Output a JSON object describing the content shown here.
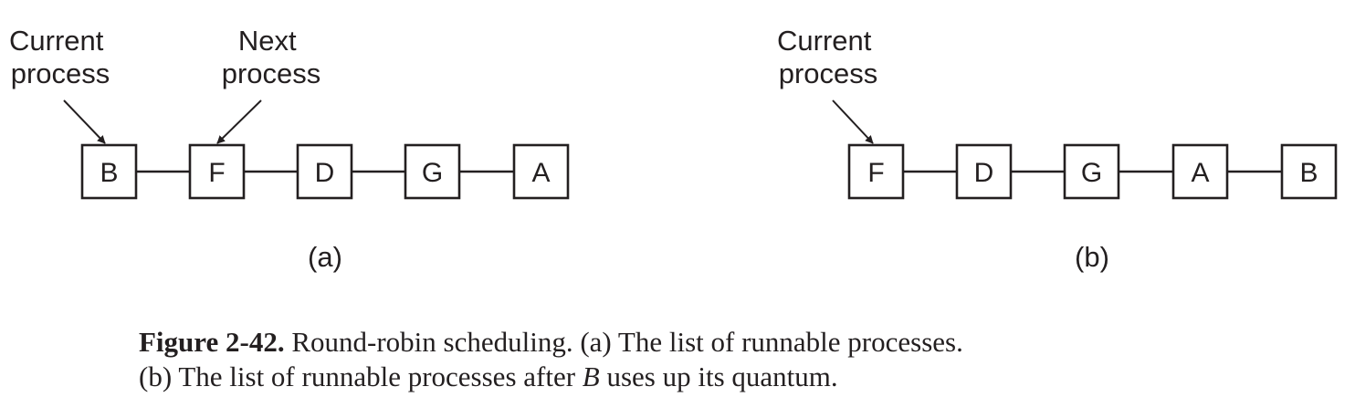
{
  "diagram_a": {
    "current_label": [
      "Current",
      "process"
    ],
    "next_label": [
      "Next",
      "process"
    ],
    "boxes": [
      "B",
      "F",
      "D",
      "G",
      "A"
    ],
    "sublabel": "(a)"
  },
  "diagram_b": {
    "current_label": [
      "Current",
      "process"
    ],
    "boxes": [
      "F",
      "D",
      "G",
      "A",
      "B"
    ],
    "sublabel": "(b)"
  },
  "caption": {
    "label": "Figure 2-42.",
    "line1_text": "Round-robin scheduling.  (a) The list of runnable processes.",
    "line2_before": "(b) The list of runnable processes after ",
    "line2_italic": "B",
    "line2_after": " uses up its quantum."
  },
  "colors": {
    "ink": "#231f20",
    "background": "#ffffff"
  }
}
